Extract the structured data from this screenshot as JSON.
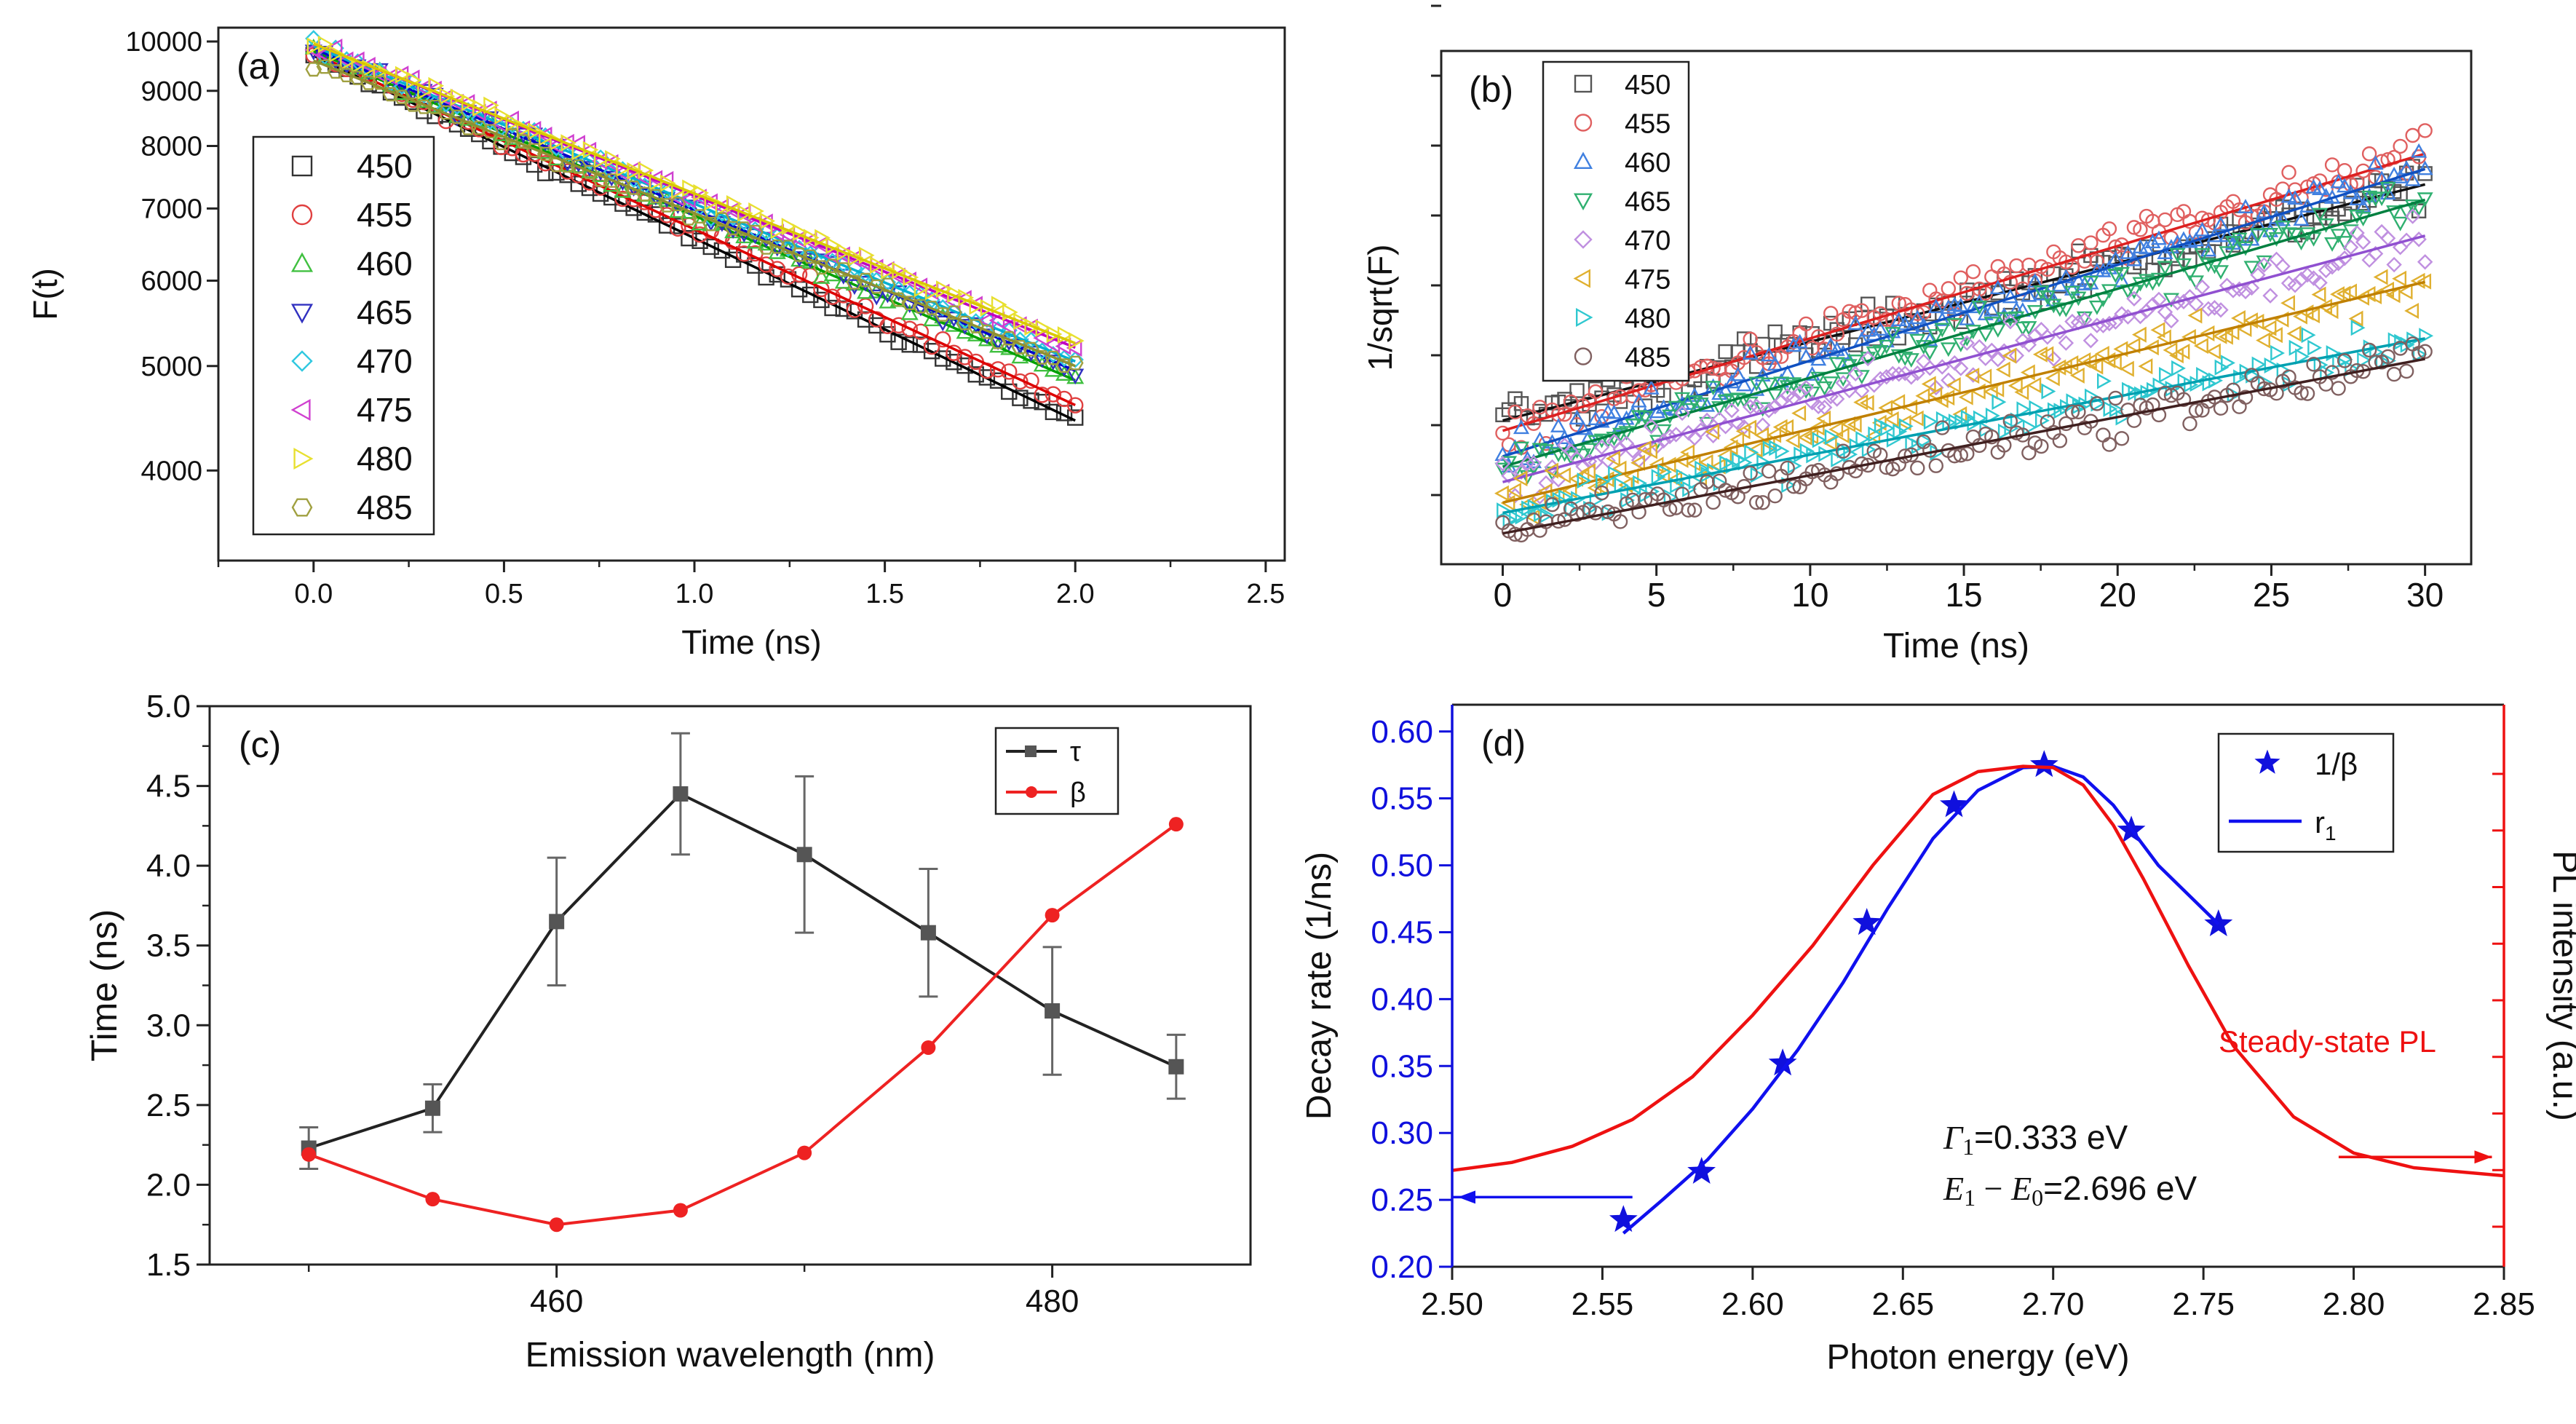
{
  "chart_data": [
    {
      "panel_label": "(a)",
      "type": "scatter",
      "scale_y": "log",
      "xlabel": "Time (ns)",
      "ylabel": "F(t)",
      "xlim": [
        -0.25,
        2.55
      ],
      "ylim": [
        3300,
        10300
      ],
      "xticks": [
        "0.0",
        "0.5",
        "1.0",
        "1.5",
        "2.0",
        "2.5"
      ],
      "yticks": [
        "4000",
        "5000",
        "6000",
        "7000",
        "8000",
        "9000",
        "10000"
      ],
      "legend_location": "left",
      "series": [
        {
          "name": "450",
          "marker": "square",
          "color": "#333333",
          "fit_color": "#000000",
          "t_end": 2.0,
          "f_start": 9700,
          "f_end": 4450
        },
        {
          "name": "455",
          "marker": "circle",
          "color": "#e04040",
          "fit_color": "#dd0000",
          "t_end": 2.0,
          "f_start": 9750,
          "f_end": 4600
        },
        {
          "name": "460",
          "marker": "triangle-up",
          "color": "#40c040",
          "fit_color": "#00a000",
          "t_end": 2.0,
          "f_start": 9800,
          "f_end": 4850
        },
        {
          "name": "465",
          "marker": "triangle-down",
          "color": "#3030c0",
          "fit_color": "#0000cc",
          "t_end": 2.0,
          "f_start": 9850,
          "f_end": 4950
        },
        {
          "name": "470",
          "marker": "diamond",
          "color": "#30c8e0",
          "fit_color": "#00b0d0",
          "t_end": 2.0,
          "f_start": 9900,
          "f_end": 5050
        },
        {
          "name": "475",
          "marker": "triangle-left",
          "color": "#d040d0",
          "fit_color": "#c000c0",
          "t_end": 2.0,
          "f_start": 9950,
          "f_end": 5200
        },
        {
          "name": "480",
          "marker": "triangle-right",
          "color": "#e8e030",
          "fit_color": "#d8c800",
          "t_end": 2.0,
          "f_start": 9950,
          "f_end": 5250
        },
        {
          "name": "485",
          "marker": "hexagon",
          "color": "#a0a040",
          "fit_color": "#909030",
          "t_end": 2.0,
          "f_start": 9600,
          "f_end": 5000
        }
      ]
    },
    {
      "panel_label": "(b)",
      "type": "scatter",
      "xlabel": "Time (ns)",
      "ylabel": "1/sqrt(F)",
      "xlim": [
        -2,
        31.5
      ],
      "ylim": [
        0,
        1
      ],
      "xticks": [
        "0",
        "5",
        "10",
        "15",
        "20",
        "25",
        "30"
      ],
      "y_tick_count": 8,
      "legend_location": "top-left",
      "series": [
        {
          "name": "450",
          "marker": "square",
          "color": "#555555",
          "fit_color": "#111111",
          "y0": 0.28,
          "y1": 0.74
        },
        {
          "name": "455",
          "marker": "circle",
          "color": "#e06060",
          "fit_color": "#dd2020",
          "y0": 0.26,
          "y1": 0.8
        },
        {
          "name": "460",
          "marker": "triangle-up",
          "color": "#4080e0",
          "fit_color": "#1050c0",
          "y0": 0.21,
          "y1": 0.77
        },
        {
          "name": "465",
          "marker": "triangle-down",
          "color": "#30b070",
          "fit_color": "#008040",
          "y0": 0.19,
          "y1": 0.71
        },
        {
          "name": "470",
          "marker": "diamond",
          "color": "#c090e0",
          "fit_color": "#9050d0",
          "y0": 0.16,
          "y1": 0.64
        },
        {
          "name": "475",
          "marker": "triangle-left",
          "color": "#e0b030",
          "fit_color": "#c08000",
          "y0": 0.12,
          "y1": 0.55
        },
        {
          "name": "480",
          "marker": "triangle-right",
          "color": "#30c8d0",
          "fit_color": "#00a0b0",
          "y0": 0.1,
          "y1": 0.44
        },
        {
          "name": "485",
          "marker": "circle",
          "color": "#806060",
          "fit_color": "#402020",
          "y0": 0.06,
          "y1": 0.4
        }
      ]
    },
    {
      "panel_label": "(c)",
      "type": "line",
      "xlabel": "Emission wavelength (nm)",
      "ylabel": "Time (ns)",
      "xlim": [
        446,
        488
      ],
      "ylim": [
        1.5,
        5.0
      ],
      "xticks": [
        "460",
        "480"
      ],
      "yticks": [
        "1.5",
        "2.0",
        "2.5",
        "3.0",
        "3.5",
        "4.0",
        "4.5",
        "5.0"
      ],
      "x": [
        450,
        455,
        460,
        465,
        470,
        475,
        480,
        485
      ],
      "legend_location": "top-right",
      "series": [
        {
          "name": "τ",
          "color": "#222222",
          "marker": "square",
          "values": [
            2.23,
            2.48,
            3.65,
            4.45,
            4.07,
            3.58,
            3.09,
            2.74
          ],
          "errors": [
            0.13,
            0.15,
            0.4,
            0.38,
            0.49,
            0.4,
            0.4,
            0.2
          ]
        },
        {
          "name": "β",
          "color": "#ee2222",
          "marker": "circle",
          "values": [
            2.19,
            1.91,
            1.75,
            1.84,
            2.2,
            2.86,
            3.69,
            4.26
          ]
        }
      ]
    },
    {
      "panel_label": "(d)",
      "type": "line",
      "xlabel": "Photon energy (eV)",
      "ylabel": "Decay rate (1/ns)",
      "ylabel_right": "PL intensity (a.u.)",
      "xlim": [
        2.5,
        2.85
      ],
      "ylim": [
        0.2,
        0.62
      ],
      "xticks": [
        "2.50",
        "2.55",
        "2.60",
        "2.65",
        "2.70",
        "2.75",
        "2.80",
        "2.85"
      ],
      "yticks": [
        "0.20",
        "0.25",
        "0.30",
        "0.35",
        "0.40",
        "0.45",
        "0.50",
        "0.55",
        "0.60"
      ],
      "y_right_tick_count": 9,
      "legend_location": "top-right",
      "series": [
        {
          "name": "1/β",
          "type": "scatter",
          "marker": "star",
          "color": "#1010dd",
          "x": [
            2.557,
            2.583,
            2.61,
            2.638,
            2.667,
            2.697,
            2.726,
            2.755
          ],
          "values": [
            0.235,
            0.271,
            0.352,
            0.457,
            0.545,
            0.575,
            0.526,
            0.456
          ]
        },
        {
          "name": "r",
          "name_subscript": "1",
          "type": "line",
          "color": "#1010ee",
          "x": [
            2.557,
            2.57,
            2.585,
            2.6,
            2.615,
            2.63,
            2.645,
            2.66,
            2.675,
            2.69,
            2.7,
            2.71,
            2.72,
            2.735,
            2.755
          ],
          "values": [
            0.225,
            0.25,
            0.28,
            0.318,
            0.362,
            0.412,
            0.468,
            0.52,
            0.556,
            0.573,
            0.574,
            0.566,
            0.545,
            0.5,
            0.456
          ]
        },
        {
          "name": "Steady-state PL",
          "type": "line",
          "color": "#ee1111",
          "x": [
            2.5,
            2.52,
            2.54,
            2.56,
            2.58,
            2.6,
            2.62,
            2.64,
            2.66,
            2.675,
            2.69,
            2.7,
            2.71,
            2.72,
            2.73,
            2.745,
            2.76,
            2.78,
            2.8,
            2.82,
            2.85
          ],
          "values": [
            0.272,
            0.278,
            0.29,
            0.31,
            0.342,
            0.388,
            0.44,
            0.5,
            0.553,
            0.57,
            0.574,
            0.573,
            0.56,
            0.53,
            0.49,
            0.425,
            0.365,
            0.312,
            0.285,
            0.274,
            0.268
          ]
        }
      ],
      "annotations": {
        "gamma_symbol": "Γ",
        "gamma_sub": "1",
        "gamma_value": "=0.333 eV",
        "energy_e1": "E",
        "energy_e1_sub": "1",
        "energy_minus": " − ",
        "energy_e0": "E",
        "energy_e0_sub": "0",
        "energy_value": "=2.696 eV",
        "pl_label": "Steady-state PL"
      },
      "arrows": {
        "left_arrow_color": "#1010ee",
        "right_arrow_color": "#ee1111"
      }
    }
  ]
}
